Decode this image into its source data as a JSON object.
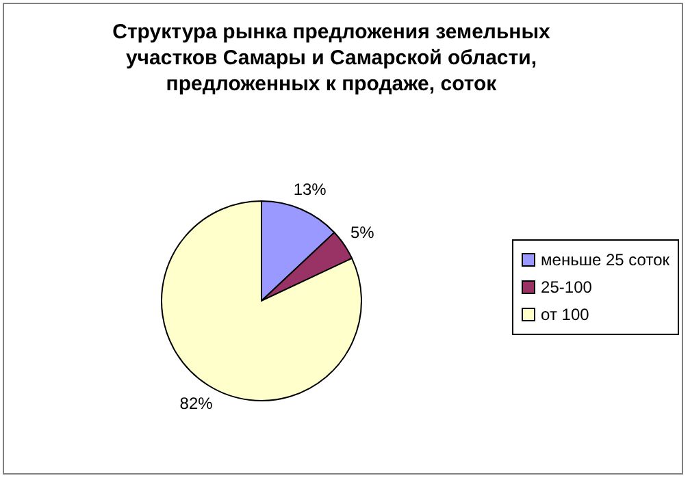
{
  "chart_data": {
    "type": "pie",
    "title": "Структура рынка предложения земельных участков Самары и Самарской области, предложенных к продаже, соток",
    "categories": [
      "меньше 25 соток",
      "25-100",
      "от 100"
    ],
    "values": [
      13,
      5,
      82
    ],
    "colors": [
      "#9999ff",
      "#993366",
      "#ffffcc"
    ],
    "value_labels": [
      "13%",
      "5%",
      "82%"
    ],
    "legend": "right"
  }
}
